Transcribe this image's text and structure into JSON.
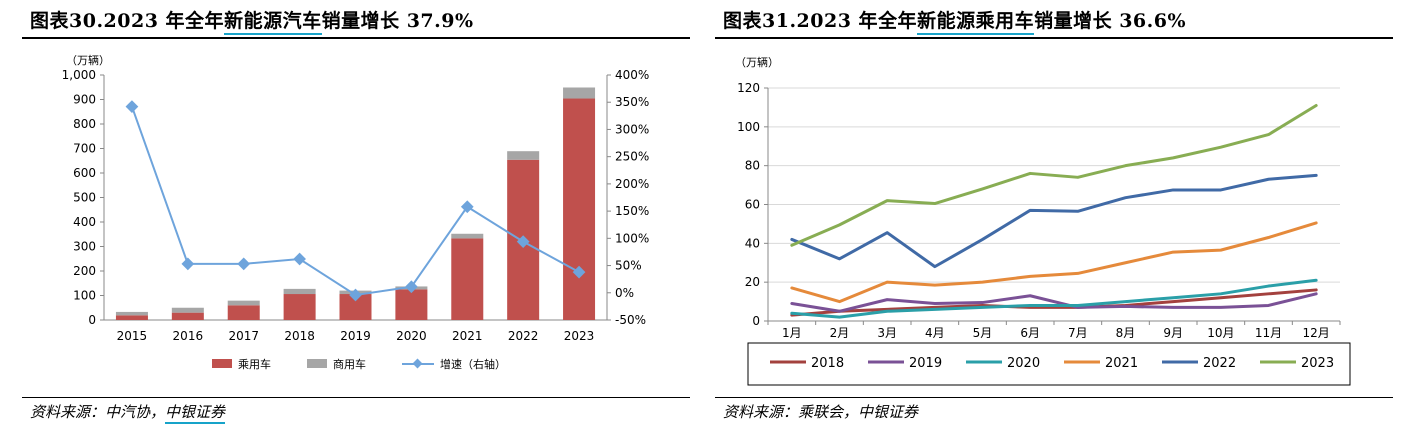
{
  "left": {
    "title_prefix": "图表30.2023 年全年",
    "title_highlight": "新能源汽车",
    "title_suffix": "销量增长 37.9%",
    "source_prefix": "资料来源：中汽协，",
    "source_highlight": "中银证券",
    "unit": "（万辆）"
  },
  "right": {
    "title_prefix": "图表31.2023 年全年",
    "title_highlight": "新能源乘用车",
    "title_suffix": "销量增长 36.6%",
    "source": "资料来源：乘联会，中银证券",
    "unit": "（万辆）"
  },
  "chart_data": [
    {
      "type": "bar",
      "stacked": true,
      "categories": [
        "2015",
        "2016",
        "2017",
        "2018",
        "2019",
        "2020",
        "2021",
        "2022",
        "2023"
      ],
      "series": [
        {
          "name": "乘用车",
          "kind": "bar",
          "axis": "left",
          "color": "#c0504d",
          "values": [
            19,
            30,
            60,
            106,
            106,
            125,
            333,
            654,
            904
          ]
        },
        {
          "name": "商用车",
          "kind": "bar",
          "axis": "left",
          "color": "#a6a6a6",
          "values": [
            14,
            20,
            19,
            21,
            14,
            12,
            19,
            35,
            45
          ]
        },
        {
          "name": "增速（右轴）",
          "kind": "line",
          "axis": "right",
          "color": "#6ea4dc",
          "values": [
            3.42,
            0.53,
            0.53,
            0.62,
            -0.04,
            0.11,
            1.58,
            0.94,
            0.38
          ]
        }
      ],
      "y_left": {
        "min": 0,
        "max": 1000,
        "ticks": [
          "0",
          "100",
          "200",
          "300",
          "400",
          "500",
          "600",
          "700",
          "800",
          "900",
          "1,000"
        ]
      },
      "y_right": {
        "min": -0.5,
        "max": 4.0,
        "ticks": [
          "-50%",
          "0%",
          "50%",
          "100%",
          "150%",
          "200%",
          "250%",
          "300%",
          "350%",
          "400%"
        ]
      },
      "legend_position": "bottom",
      "grid": false
    },
    {
      "type": "line",
      "categories": [
        "1月",
        "2月",
        "3月",
        "4月",
        "5月",
        "6月",
        "7月",
        "8月",
        "9月",
        "10月",
        "11月",
        "12月"
      ],
      "series": [
        {
          "name": "2018",
          "color": "#a3413e",
          "values": [
            3,
            5,
            6,
            7,
            8,
            7,
            7,
            8,
            10,
            12,
            14,
            16
          ]
        },
        {
          "name": "2019",
          "color": "#7a5196",
          "values": [
            9,
            5,
            11,
            9,
            9.5,
            13,
            7,
            7.5,
            7,
            7,
            8,
            14
          ]
        },
        {
          "name": "2020",
          "color": "#2a9fa8",
          "values": [
            4,
            2,
            5,
            6,
            7,
            8,
            8,
            10,
            12,
            14,
            18,
            21
          ]
        },
        {
          "name": "2021",
          "color": "#e58a3b",
          "values": [
            17,
            10,
            20,
            18.5,
            20,
            23,
            24.5,
            30,
            35.5,
            36.5,
            43,
            50.5
          ]
        },
        {
          "name": "2022",
          "color": "#406aa6",
          "values": [
            42,
            32,
            45.5,
            28,
            42,
            57,
            56.5,
            63.5,
            67.5,
            67.5,
            73,
            75
          ]
        },
        {
          "name": "2023",
          "color": "#88ad53",
          "values": [
            39,
            49.5,
            62,
            60.5,
            68,
            76,
            74,
            80,
            84,
            89.5,
            96,
            111
          ]
        }
      ],
      "y": {
        "min": 0,
        "max": 120,
        "ticks": [
          "0",
          "20",
          "40",
          "60",
          "80",
          "100",
          "120"
        ]
      },
      "legend_position": "bottom",
      "grid": true
    }
  ]
}
